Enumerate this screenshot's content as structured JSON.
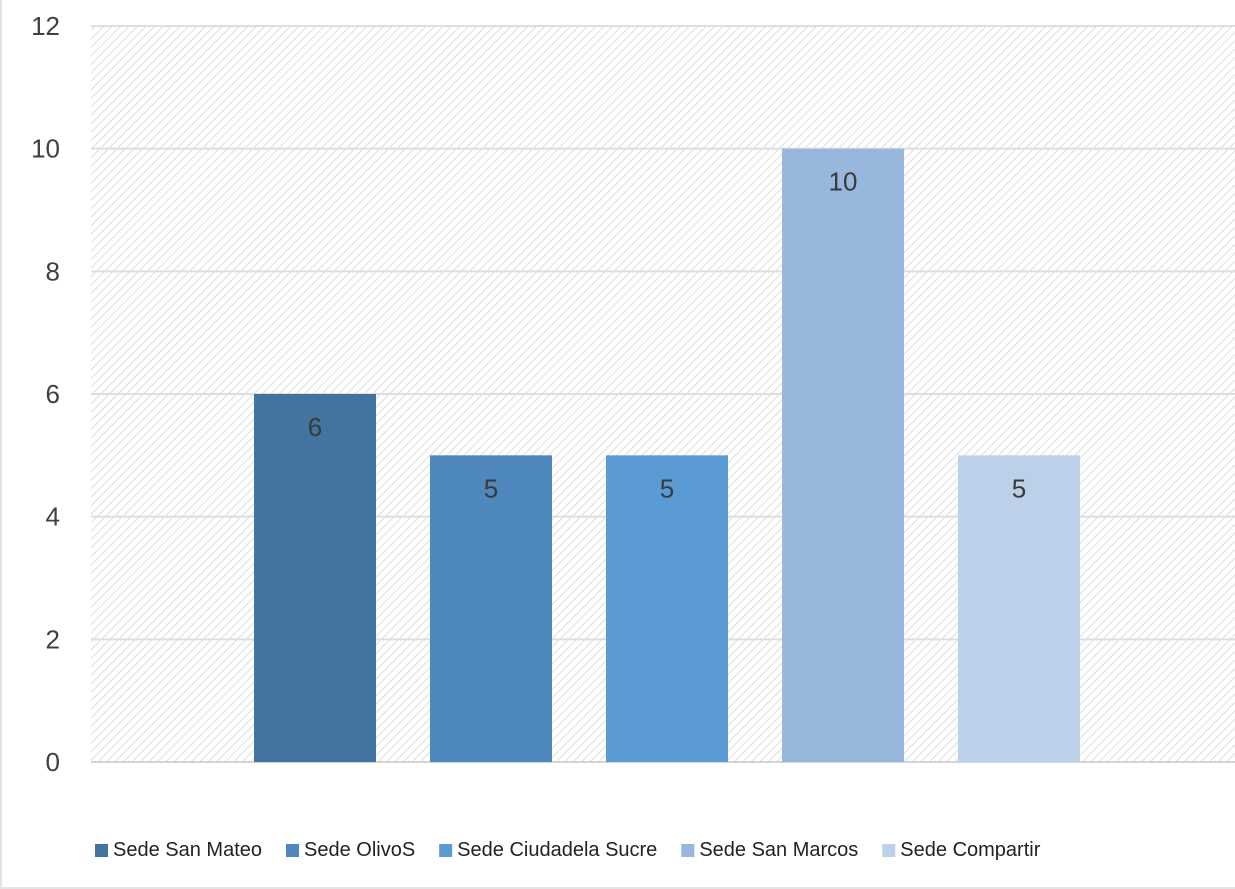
{
  "chart_data": {
    "type": "bar",
    "title": "",
    "xlabel": "",
    "ylabel": "",
    "ylim": [
      0,
      12
    ],
    "yticks": [
      0,
      2,
      4,
      6,
      8,
      10,
      12
    ],
    "grid": true,
    "legend_position": "bottom",
    "data_labels": true,
    "series": [
      {
        "name": "Sede San Mateo",
        "value": 6,
        "color": "#43739f"
      },
      {
        "name": "Sede OlivoS",
        "value": 5,
        "color": "#4f88bc"
      },
      {
        "name": "Sede Ciudadela Sucre",
        "value": 5,
        "color": "#5b9bd5"
      },
      {
        "name": "Sede San Marcos",
        "value": 10,
        "color": "#97b7dd"
      },
      {
        "name": "Sede Compartir",
        "value": 5,
        "color": "#bdd0e9"
      }
    ]
  }
}
